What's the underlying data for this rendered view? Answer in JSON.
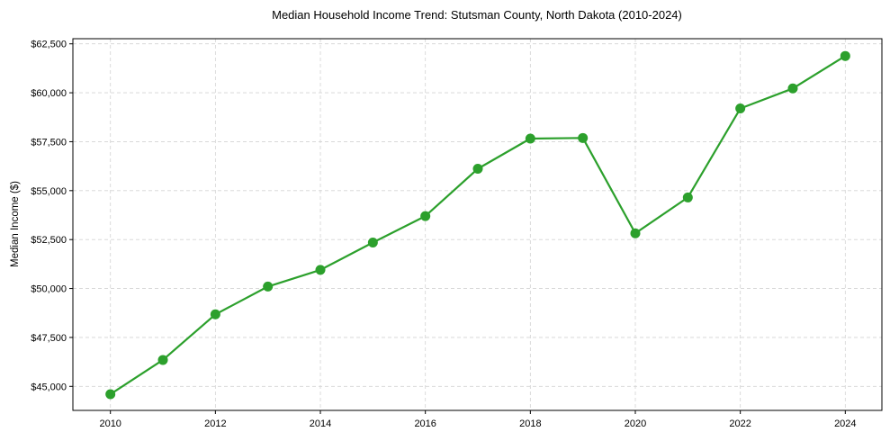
{
  "chart_data": {
    "type": "line",
    "title": "Median Household Income Trend: Stutsman County, North Dakota (2010-2024)",
    "xlabel": "",
    "ylabel": "Median Income ($)",
    "x": [
      2010,
      2011,
      2012,
      2013,
      2014,
      2015,
      2016,
      2017,
      2018,
      2019,
      2020,
      2021,
      2022,
      2023,
      2024
    ],
    "series": [
      {
        "name": "Median Household Income",
        "color": "#2ca02c",
        "marker": "circle",
        "values": [
          44600,
          46350,
          48680,
          50100,
          50950,
          52350,
          53700,
          56120,
          57660,
          57690,
          52820,
          54650,
          59200,
          60220,
          61880
        ]
      }
    ],
    "xticks": [
      2010,
      2012,
      2014,
      2016,
      2018,
      2020,
      2022,
      2024
    ],
    "xtick_labels": [
      "2010",
      "2012",
      "2014",
      "2016",
      "2018",
      "2020",
      "2022",
      "2024"
    ],
    "yticks": [
      45000,
      47500,
      50000,
      52500,
      55000,
      57500,
      60000,
      62500
    ],
    "ytick_labels": [
      "$45,000",
      "$47,500",
      "$50,000",
      "$52,500",
      "$55,000",
      "$57,500",
      "$60,000",
      "$62,500"
    ],
    "xlim": [
      2009.3,
      2024.7
    ],
    "ylim": [
      43800,
      62750
    ],
    "grid": true,
    "grid_style": "dashed",
    "legend": null
  },
  "colors": {
    "line": "#2ca02c",
    "grid": "#d3d3d3",
    "axis": "#000000"
  }
}
